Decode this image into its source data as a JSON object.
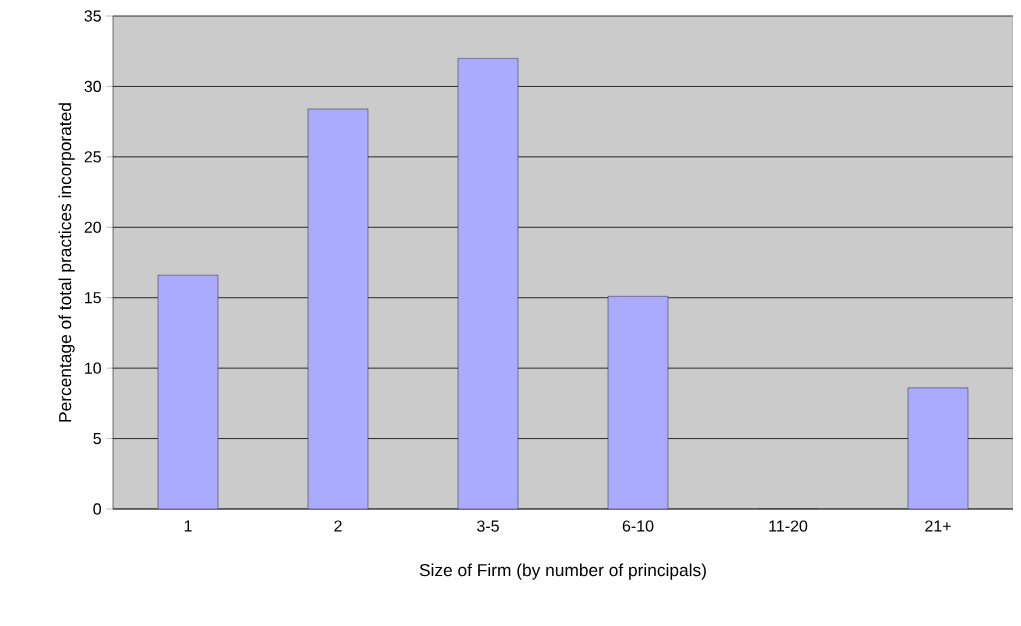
{
  "chart_data": {
    "type": "bar",
    "xlabel": "Size of Firm (by number of principals)",
    "ylabel": "Percentage of total practices incorporated",
    "categories": [
      "1",
      "2",
      "3-5",
      "6-10",
      "11-20",
      "21+"
    ],
    "values": [
      16.6,
      28.4,
      32.0,
      15.1,
      0,
      8.6
    ],
    "color": "#aaaaff",
    "ylim": [
      0,
      35
    ],
    "yticks": [
      0,
      5,
      10,
      15,
      20,
      25,
      30,
      35
    ],
    "grid": "y"
  }
}
